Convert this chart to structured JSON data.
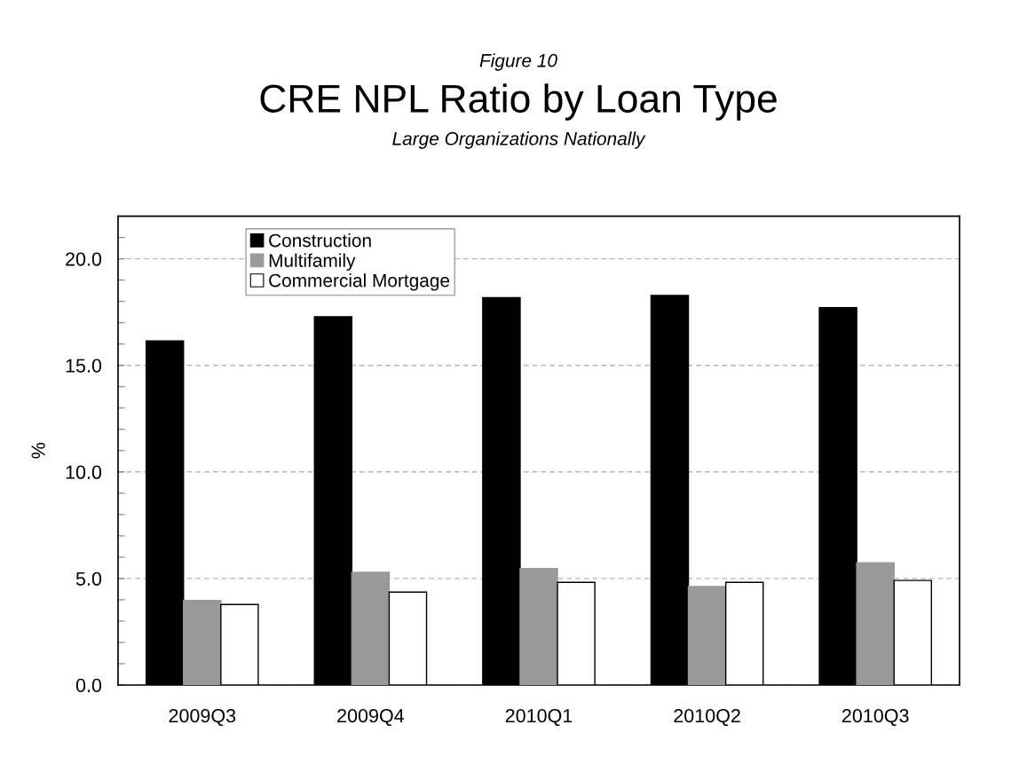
{
  "chart_data": {
    "type": "bar",
    "title": "CRE NPL Ratio by Loan Type",
    "subtitle": "Large Organizations Nationally",
    "annotations": [
      "Figure 10"
    ],
    "ylabel": "%",
    "categories": [
      "2009Q3",
      "2009Q4",
      "2010Q1",
      "2010Q2",
      "2010Q3"
    ],
    "series": [
      {
        "name": "Construction",
        "color": "#000000",
        "values": [
          16.15,
          17.28,
          18.18,
          18.28,
          17.71
        ]
      },
      {
        "name": "Multifamily",
        "color": "#999999",
        "values": [
          3.97,
          5.29,
          5.47,
          4.62,
          5.74
        ]
      },
      {
        "name": "Commercial Mortgage",
        "color": "#ffffff",
        "values": [
          3.78,
          4.36,
          4.82,
          4.82,
          4.91
        ]
      }
    ],
    "ylim": [
      0,
      22
    ],
    "yticks": [
      {
        "value": 0,
        "label": "0.0"
      },
      {
        "value": 1,
        "label": null
      },
      {
        "value": 2,
        "label": null
      },
      {
        "value": 3,
        "label": null
      },
      {
        "value": 4,
        "label": null
      },
      {
        "value": 5,
        "label": "5.0"
      },
      {
        "value": 6,
        "label": null
      },
      {
        "value": 7,
        "label": null
      },
      {
        "value": 8,
        "label": null
      },
      {
        "value": 9,
        "label": null
      },
      {
        "value": 10,
        "label": "10.0"
      },
      {
        "value": 11,
        "label": null
      },
      {
        "value": 12,
        "label": null
      },
      {
        "value": 13,
        "label": null
      },
      {
        "value": 14,
        "label": null
      },
      {
        "value": 15,
        "label": "15.0"
      },
      {
        "value": 16,
        "label": null
      },
      {
        "value": 17,
        "label": null
      },
      {
        "value": 18,
        "label": null
      },
      {
        "value": 19,
        "label": null
      },
      {
        "value": 20,
        "label": "20.0"
      },
      {
        "value": 21,
        "label": null
      }
    ],
    "grid": "y",
    "legend": "top left"
  }
}
